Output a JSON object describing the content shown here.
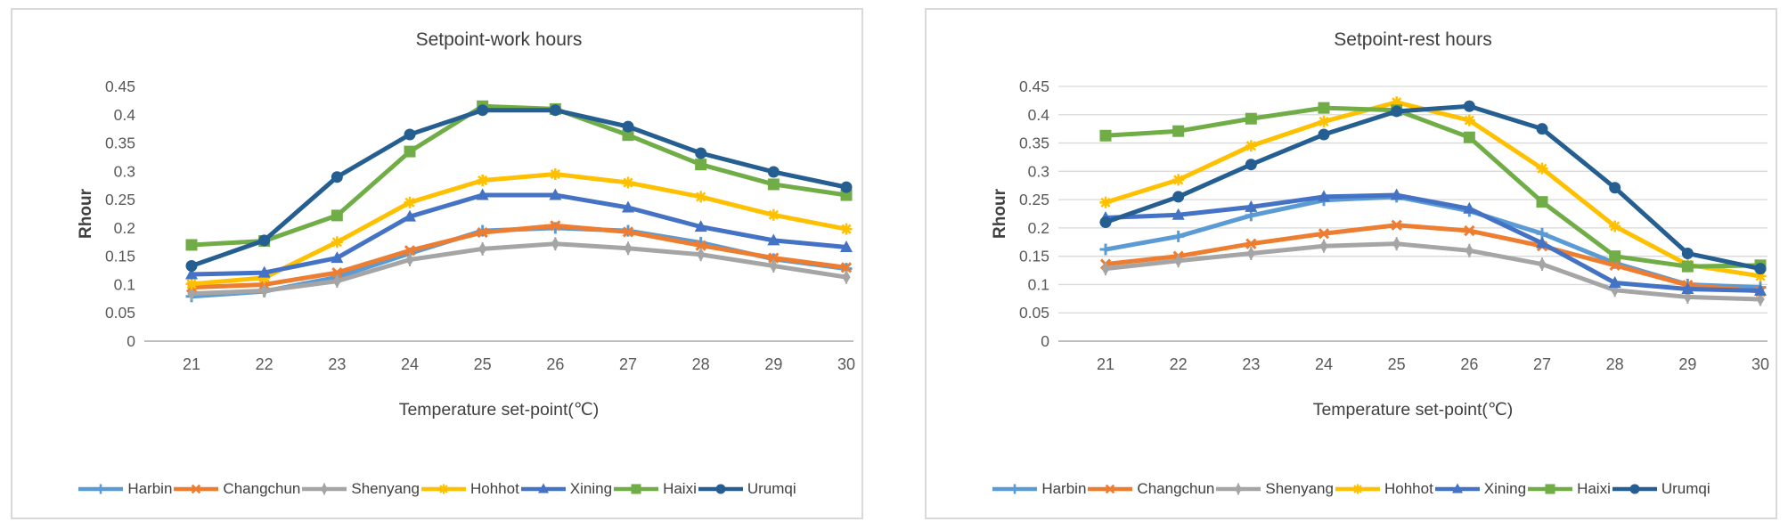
{
  "styles": {
    "background": "#ffffff",
    "panel_border": "#d9d9d9",
    "gridline_color": "#d9d9d9",
    "axis_line_color": "#bfbfbf",
    "tick_text_color": "#595959",
    "title_color": "#3d3d3d",
    "axis_title_color": "#404040"
  },
  "chart_data": [
    {
      "type": "line",
      "title": "Setpoint-work hours",
      "xlabel": "Temperature set-point(℃)",
      "ylabel": "Rhour",
      "categories": [
        21,
        22,
        23,
        24,
        25,
        26,
        27,
        28,
        29,
        30
      ],
      "ylim": [
        0,
        0.45
      ],
      "ytick_step": 0.05,
      "ytick_labels": [
        "0",
        "0.05",
        "0.1",
        "0.15",
        "0.2",
        "0.25",
        "0.3",
        "0.35",
        "0.4",
        "0.45"
      ],
      "gridlines": false,
      "legend_position": "bottom",
      "series": [
        {
          "name": "Harbin",
          "color": "#5B9BD5",
          "marker": "plus",
          "values": [
            0.079,
            0.088,
            0.113,
            0.155,
            0.195,
            0.2,
            0.195,
            0.174,
            0.145,
            0.128
          ]
        },
        {
          "name": "Changchun",
          "color": "#ED7D31",
          "marker": "x",
          "values": [
            0.095,
            0.1,
            0.121,
            0.16,
            0.192,
            0.204,
            0.193,
            0.169,
            0.147,
            0.13
          ]
        },
        {
          "name": "Shenyang",
          "color": "#A5A5A5",
          "marker": "asterisk",
          "values": [
            0.084,
            0.089,
            0.106,
            0.144,
            0.163,
            0.172,
            0.164,
            0.153,
            0.133,
            0.113
          ]
        },
        {
          "name": "Hohhot",
          "color": "#FFC000",
          "marker": "star8",
          "values": [
            0.101,
            0.112,
            0.175,
            0.245,
            0.284,
            0.295,
            0.28,
            0.255,
            0.223,
            0.198
          ]
        },
        {
          "name": "Xining",
          "color": "#4472C4",
          "marker": "triangle",
          "values": [
            0.118,
            0.121,
            0.147,
            0.22,
            0.258,
            0.258,
            0.236,
            0.202,
            0.178,
            0.166
          ]
        },
        {
          "name": "Haixi",
          "color": "#70AD47",
          "marker": "square",
          "values": [
            0.17,
            0.177,
            0.222,
            0.335,
            0.415,
            0.41,
            0.364,
            0.312,
            0.277,
            0.258
          ]
        },
        {
          "name": "Urumqi",
          "color": "#255E91",
          "marker": "circle",
          "values": [
            0.133,
            0.178,
            0.29,
            0.365,
            0.408,
            0.408,
            0.379,
            0.332,
            0.299,
            0.272
          ]
        }
      ]
    },
    {
      "type": "line",
      "title": "Setpoint-rest hours",
      "xlabel": "Temperature set-point(℃)",
      "ylabel": "Rhour",
      "categories": [
        21,
        22,
        23,
        24,
        25,
        26,
        27,
        28,
        29,
        30
      ],
      "ylim": [
        0,
        0.45
      ],
      "ytick_step": 0.05,
      "ytick_labels": [
        "0",
        "0.05",
        "0.1",
        "0.15",
        "0.2",
        "0.25",
        "0.3",
        "0.35",
        "0.4",
        "0.45"
      ],
      "gridlines": true,
      "legend_position": "bottom",
      "series": [
        {
          "name": "Harbin",
          "color": "#5B9BD5",
          "marker": "plus",
          "values": [
            0.162,
            0.185,
            0.222,
            0.249,
            0.255,
            0.23,
            0.19,
            0.138,
            0.1,
            0.095
          ]
        },
        {
          "name": "Changchun",
          "color": "#ED7D31",
          "marker": "x",
          "values": [
            0.136,
            0.15,
            0.172,
            0.19,
            0.205,
            0.195,
            0.168,
            0.134,
            0.099,
            0.088
          ]
        },
        {
          "name": "Shenyang",
          "color": "#A5A5A5",
          "marker": "asterisk",
          "values": [
            0.128,
            0.142,
            0.155,
            0.168,
            0.172,
            0.16,
            0.136,
            0.09,
            0.078,
            0.074
          ]
        },
        {
          "name": "Hohhot",
          "color": "#FFC000",
          "marker": "star8",
          "values": [
            0.245,
            0.285,
            0.345,
            0.388,
            0.422,
            0.39,
            0.305,
            0.203,
            0.135,
            0.115
          ]
        },
        {
          "name": "Xining",
          "color": "#4472C4",
          "marker": "triangle",
          "values": [
            0.218,
            0.223,
            0.237,
            0.255,
            0.258,
            0.234,
            0.173,
            0.103,
            0.092,
            0.089
          ]
        },
        {
          "name": "Haixi",
          "color": "#70AD47",
          "marker": "square",
          "values": [
            0.363,
            0.371,
            0.393,
            0.412,
            0.408,
            0.36,
            0.246,
            0.15,
            0.132,
            0.134
          ]
        },
        {
          "name": "Urumqi",
          "color": "#255E91",
          "marker": "circle",
          "values": [
            0.21,
            0.255,
            0.312,
            0.365,
            0.406,
            0.415,
            0.375,
            0.271,
            0.155,
            0.128
          ]
        }
      ]
    }
  ]
}
